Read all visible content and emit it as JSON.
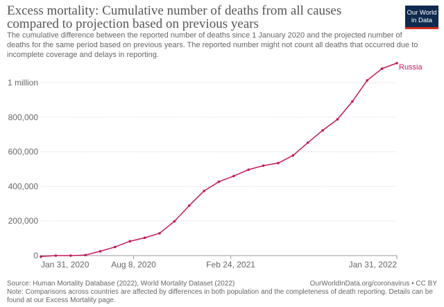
{
  "header": {
    "title": "Excess mortality: Cumulative number of deaths from all causes compared to projection based on previous years",
    "subtitle": "The cumulative difference between the reported number of deaths since 1 January 2020 and the projected number of deaths for the same period based on previous years. The reported number might not count all deaths that occurred due to incomplete coverage and delays in reporting.",
    "logo": "Our World in Data"
  },
  "footer": {
    "source": "Source: Human Mortality Database (2022), World Mortality Dataset (2022)",
    "link": "OurWorldInData.org/coronavirus • CC BY",
    "note": "Note: Comparisons across countries are affected by differences in both population and the completeness of death reporting. Details can be found at our Excess Mortality page."
  },
  "chart_data": {
    "type": "line",
    "title": "Excess mortality: Cumulative number of deaths from all causes compared to projection based on previous years",
    "xlabel": "",
    "ylabel": "",
    "ylim": [
      0,
      1120000
    ],
    "grid": true,
    "color": "#c2185b",
    "y_ticks": [
      {
        "value": 0,
        "label": "0"
      },
      {
        "value": 200000,
        "label": "200,000"
      },
      {
        "value": 400000,
        "label": "400,000"
      },
      {
        "value": 600000,
        "label": "600,000"
      },
      {
        "value": 800000,
        "label": "800,000"
      },
      {
        "value": 1000000,
        "label": "1 million"
      }
    ],
    "x_ticks": [
      {
        "index": 0,
        "label": "Jan 31, 2020"
      },
      {
        "index": 6.25,
        "label": "Aug 8, 2020"
      },
      {
        "index": 12.8,
        "label": "Feb 24, 2021"
      },
      {
        "index": 24,
        "label": "Jan 31, 2022"
      }
    ],
    "series": [
      {
        "name": "Russia",
        "x": [
          "2020-01",
          "2020-02",
          "2020-03",
          "2020-04",
          "2020-05",
          "2020-06",
          "2020-07",
          "2020-08",
          "2020-09",
          "2020-10",
          "2020-11",
          "2020-12",
          "2021-01",
          "2021-02",
          "2021-03",
          "2021-04",
          "2021-05",
          "2021-06",
          "2021-07",
          "2021-08",
          "2021-09",
          "2021-10",
          "2021-11",
          "2021-12",
          "2022-01"
        ],
        "values": [
          -5000,
          0,
          0,
          3000,
          25000,
          50000,
          83000,
          103000,
          129000,
          198000,
          289000,
          374000,
          427000,
          460000,
          497000,
          520000,
          535000,
          579000,
          653000,
          724000,
          788000,
          891000,
          1013000,
          1081000,
          1113000
        ]
      }
    ]
  }
}
